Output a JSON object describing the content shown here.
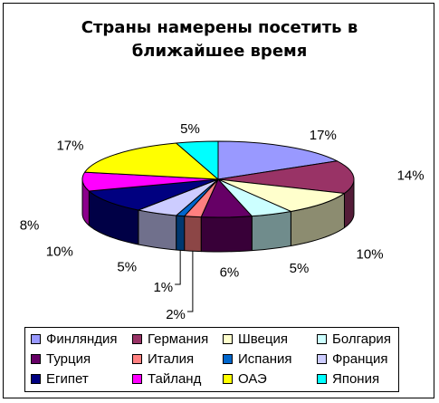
{
  "chart_data": {
    "type": "pie",
    "title": "Страны намерены посетить в ближайшее время",
    "slices": [
      {
        "label": "Финляндия",
        "value": 17,
        "display": "17%",
        "color": "#9999FF"
      },
      {
        "label": "Германия",
        "value": 14,
        "display": "14%",
        "color": "#993366"
      },
      {
        "label": "Швеция",
        "value": 10,
        "display": "10%",
        "color": "#FFFFCC"
      },
      {
        "label": "Болгария",
        "value": 5,
        "display": "5%",
        "color": "#CCFFFF"
      },
      {
        "label": "Турция",
        "value": 6,
        "display": "6%",
        "color": "#660066"
      },
      {
        "label": "Италия",
        "value": 2,
        "display": "2%",
        "color": "#FF8080"
      },
      {
        "label": "Испания",
        "value": 1,
        "display": "1%",
        "color": "#0066CC"
      },
      {
        "label": "Франция",
        "value": 5,
        "display": "5%",
        "color": "#CCCCFF"
      },
      {
        "label": "Египет",
        "value": 10,
        "display": "10%",
        "color": "#000080"
      },
      {
        "label": "Тайланд",
        "value": 8,
        "display": "8%",
        "color": "#FF00FF"
      },
      {
        "label": "ОАЭ",
        "value": 17,
        "display": "17%",
        "color": "#FFFF00"
      },
      {
        "label": "Япония",
        "value": 5,
        "display": "5%",
        "color": "#00FFFF"
      }
    ],
    "legend_position": "bottom"
  }
}
